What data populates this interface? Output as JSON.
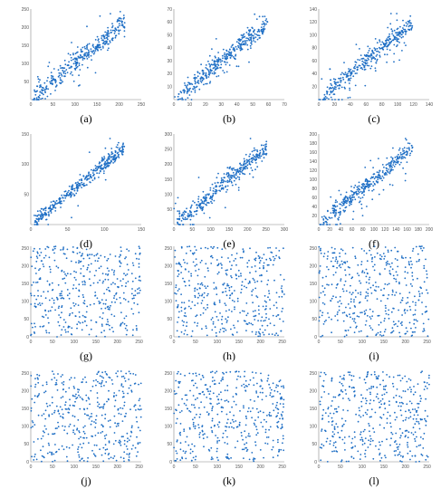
{
  "point_color": "#1f6fc5",
  "chart_data": [
    {
      "type": "scatter",
      "label": "(a)",
      "xlim": [
        0,
        250
      ],
      "ylim": [
        0,
        250
      ],
      "xticks": [
        0,
        50,
        100,
        150,
        200,
        250
      ],
      "yticks": [
        0,
        50,
        100,
        150,
        200,
        250
      ],
      "pattern": "correlated",
      "n": 380,
      "spread": 14,
      "outlier_rate": 0.06,
      "xlabel": "",
      "ylabel": ""
    },
    {
      "type": "scatter",
      "label": "(b)",
      "xlim": [
        0,
        70
      ],
      "ylim": [
        0,
        70
      ],
      "xticks": [
        0,
        10,
        20,
        30,
        40,
        50,
        60,
        70
      ],
      "yticks": [
        0,
        10,
        20,
        30,
        40,
        50,
        60,
        70
      ],
      "pattern": "correlated",
      "n": 380,
      "spread": 4,
      "outlier_rate": 0.05,
      "xlabel": "",
      "ylabel": ""
    },
    {
      "type": "scatter",
      "label": "(c)",
      "xlim": [
        0,
        140
      ],
      "ylim": [
        0,
        140
      ],
      "xticks": [
        0,
        20,
        40,
        60,
        80,
        100,
        120,
        140
      ],
      "yticks": [
        0,
        20,
        40,
        60,
        80,
        100,
        120,
        140
      ],
      "pattern": "correlated",
      "n": 380,
      "spread": 7,
      "outlier_rate": 0.18,
      "xlabel": "",
      "ylabel": ""
    },
    {
      "type": "scatter",
      "label": "(d)",
      "xlim": [
        0,
        150
      ],
      "ylim": [
        0,
        150
      ],
      "xticks": [
        0,
        50,
        100,
        150
      ],
      "yticks": [
        0,
        50,
        100,
        150
      ],
      "pattern": "correlated",
      "n": 380,
      "spread": 6,
      "outlier_rate": 0.04,
      "xlabel": "",
      "ylabel": ""
    },
    {
      "type": "scatter",
      "label": "(e)",
      "xlim": [
        0,
        300
      ],
      "ylim": [
        0,
        300
      ],
      "xticks": [
        0,
        50,
        100,
        150,
        200,
        250,
        300
      ],
      "yticks": [
        0,
        50,
        100,
        150,
        200,
        250,
        300
      ],
      "pattern": "correlated",
      "n": 380,
      "spread": 15,
      "outlier_rate": 0.12,
      "xlabel": "",
      "ylabel": ""
    },
    {
      "type": "scatter",
      "label": "(f)",
      "xlim": [
        0,
        200
      ],
      "ylim": [
        0,
        200
      ],
      "xticks": [
        0,
        20,
        40,
        60,
        80,
        100,
        120,
        140,
        160,
        180,
        200
      ],
      "yticks": [
        0,
        20,
        40,
        60,
        80,
        100,
        120,
        140,
        160,
        180,
        200
      ],
      "pattern": "correlated",
      "n": 380,
      "spread": 9,
      "outlier_rate": 0.15,
      "xlabel": "",
      "ylabel": ""
    },
    {
      "type": "scatter",
      "label": "(g)",
      "xlim": [
        0,
        255
      ],
      "ylim": [
        0,
        255
      ],
      "xticks": [
        0,
        50,
        100,
        150,
        200,
        250
      ],
      "yticks": [
        0,
        50,
        100,
        150,
        200,
        250
      ],
      "pattern": "uniform",
      "n": 420,
      "xlabel": "",
      "ylabel": ""
    },
    {
      "type": "scatter",
      "label": "(h)",
      "xlim": [
        0,
        255
      ],
      "ylim": [
        0,
        255
      ],
      "xticks": [
        0,
        50,
        100,
        150,
        200,
        250
      ],
      "yticks": [
        0,
        50,
        100,
        150,
        200,
        250
      ],
      "pattern": "uniform",
      "n": 420,
      "xlabel": "",
      "ylabel": ""
    },
    {
      "type": "scatter",
      "label": "(i)",
      "xlim": [
        0,
        255
      ],
      "ylim": [
        0,
        255
      ],
      "xticks": [
        0,
        50,
        100,
        150,
        200,
        250
      ],
      "yticks": [
        0,
        50,
        100,
        150,
        200,
        250
      ],
      "pattern": "uniform",
      "n": 420,
      "xlabel": "",
      "ylabel": ""
    },
    {
      "type": "scatter",
      "label": "(j)",
      "xlim": [
        0,
        255
      ],
      "ylim": [
        0,
        255
      ],
      "xticks": [
        0,
        50,
        100,
        150,
        200,
        250
      ],
      "yticks": [
        0,
        50,
        100,
        150,
        200,
        250
      ],
      "pattern": "uniform",
      "n": 420,
      "xlabel": "",
      "ylabel": ""
    },
    {
      "type": "scatter",
      "label": "(k)",
      "xlim": [
        0,
        255
      ],
      "ylim": [
        0,
        255
      ],
      "xticks": [
        0,
        50,
        100,
        150,
        200,
        250
      ],
      "yticks": [
        0,
        50,
        100,
        150,
        200,
        250
      ],
      "pattern": "uniform",
      "n": 420,
      "xlabel": "",
      "ylabel": ""
    },
    {
      "type": "scatter",
      "label": "(l)",
      "xlim": [
        0,
        255
      ],
      "ylim": [
        0,
        255
      ],
      "xticks": [
        0,
        50,
        100,
        150,
        200,
        250
      ],
      "yticks": [
        0,
        50,
        100,
        150,
        200,
        250
      ],
      "pattern": "uniform",
      "n": 420,
      "xlabel": "",
      "ylabel": ""
    }
  ]
}
